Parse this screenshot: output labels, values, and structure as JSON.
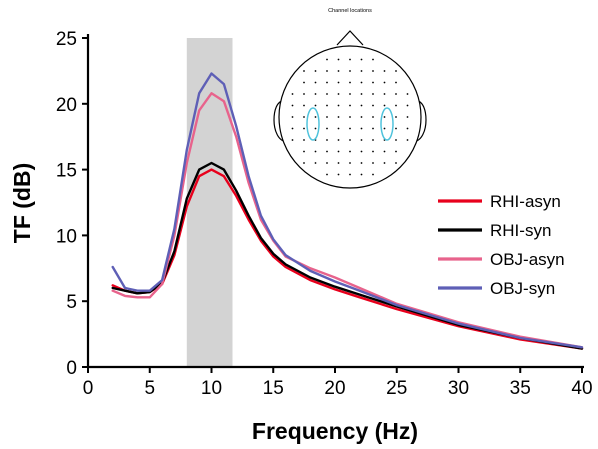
{
  "chart_data": {
    "type": "line",
    "title": "",
    "xlabel": "Frequency (Hz)",
    "ylabel": "TF (dB)",
    "xlim": [
      0,
      40
    ],
    "ylim": [
      0,
      25
    ],
    "xticks": [
      0,
      5,
      10,
      15,
      20,
      25,
      30,
      35,
      40
    ],
    "yticks": [
      0,
      5,
      10,
      15,
      20,
      25
    ],
    "grid": false,
    "legend_position": "right",
    "highlight_band": {
      "x_start": 8,
      "x_end": 11.7,
      "color": "#d3d3d3"
    },
    "x": [
      2,
      3,
      4,
      5,
      6,
      7,
      8,
      9,
      10,
      11,
      12,
      13,
      14,
      15,
      16,
      18,
      20,
      22,
      25,
      30,
      35,
      40
    ],
    "series": [
      {
        "name": "RHI-asyn",
        "color": "#e8001c",
        "values": [
          6.2,
          5.8,
          5.6,
          5.7,
          6.3,
          8.5,
          12.2,
          14.5,
          15.0,
          14.5,
          13.0,
          11.2,
          9.6,
          8.4,
          7.6,
          6.6,
          5.9,
          5.3,
          4.4,
          3.1,
          2.1,
          1.4
        ]
      },
      {
        "name": "RHI-syn",
        "color": "#000000",
        "values": [
          6.0,
          5.8,
          5.6,
          5.7,
          6.4,
          8.8,
          12.8,
          15.0,
          15.5,
          15.0,
          13.4,
          11.5,
          9.8,
          8.6,
          7.8,
          6.8,
          6.1,
          5.5,
          4.6,
          3.2,
          2.2,
          1.4
        ]
      },
      {
        "name": "OBJ-asyn",
        "color": "#e8638c",
        "values": [
          5.8,
          5.4,
          5.3,
          5.3,
          6.3,
          10.0,
          15.5,
          19.5,
          20.8,
          20.2,
          17.5,
          14.0,
          11.2,
          9.6,
          8.4,
          7.5,
          6.8,
          6.0,
          4.8,
          3.4,
          2.3,
          1.5
        ]
      },
      {
        "name": "OBJ-syn",
        "color": "#5e5fb6",
        "values": [
          7.6,
          6.0,
          5.8,
          5.8,
          6.6,
          10.5,
          16.5,
          20.8,
          22.3,
          21.5,
          18.3,
          14.5,
          11.5,
          9.7,
          8.5,
          7.3,
          6.5,
          5.8,
          4.7,
          3.3,
          2.2,
          1.5
        ]
      }
    ]
  },
  "inset": {
    "title": "Channel locations",
    "roi_color": "#4fc3dc",
    "outline_color": "#000000"
  }
}
